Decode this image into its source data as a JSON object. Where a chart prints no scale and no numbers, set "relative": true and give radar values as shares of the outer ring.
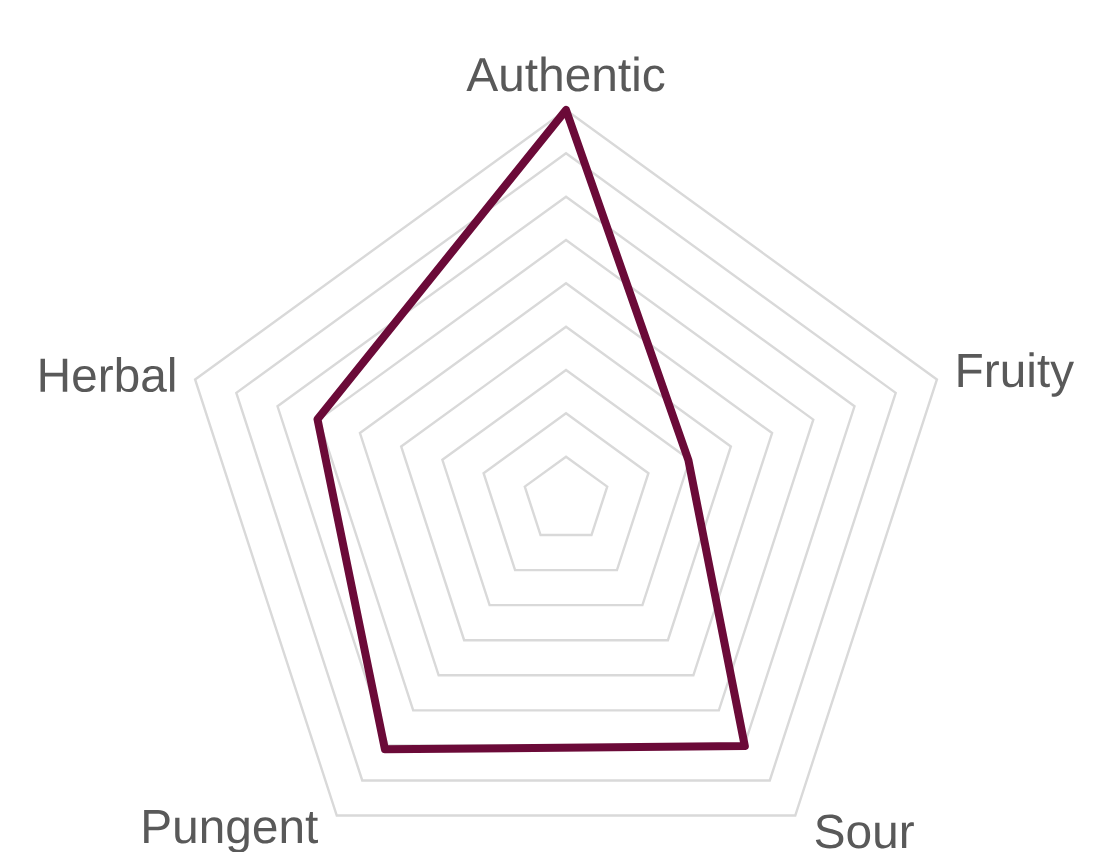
{
  "chart_data": {
    "type": "radar",
    "relative": true,
    "grid": true,
    "categories": [
      "Authentic",
      "Fruity",
      "Sour",
      "Pungent",
      "Herbal"
    ],
    "series": [
      {
        "color": "#6b0a38",
        "values": [
          1.0,
          0.33,
          0.78,
          0.79,
          0.67
        ]
      }
    ]
  }
}
